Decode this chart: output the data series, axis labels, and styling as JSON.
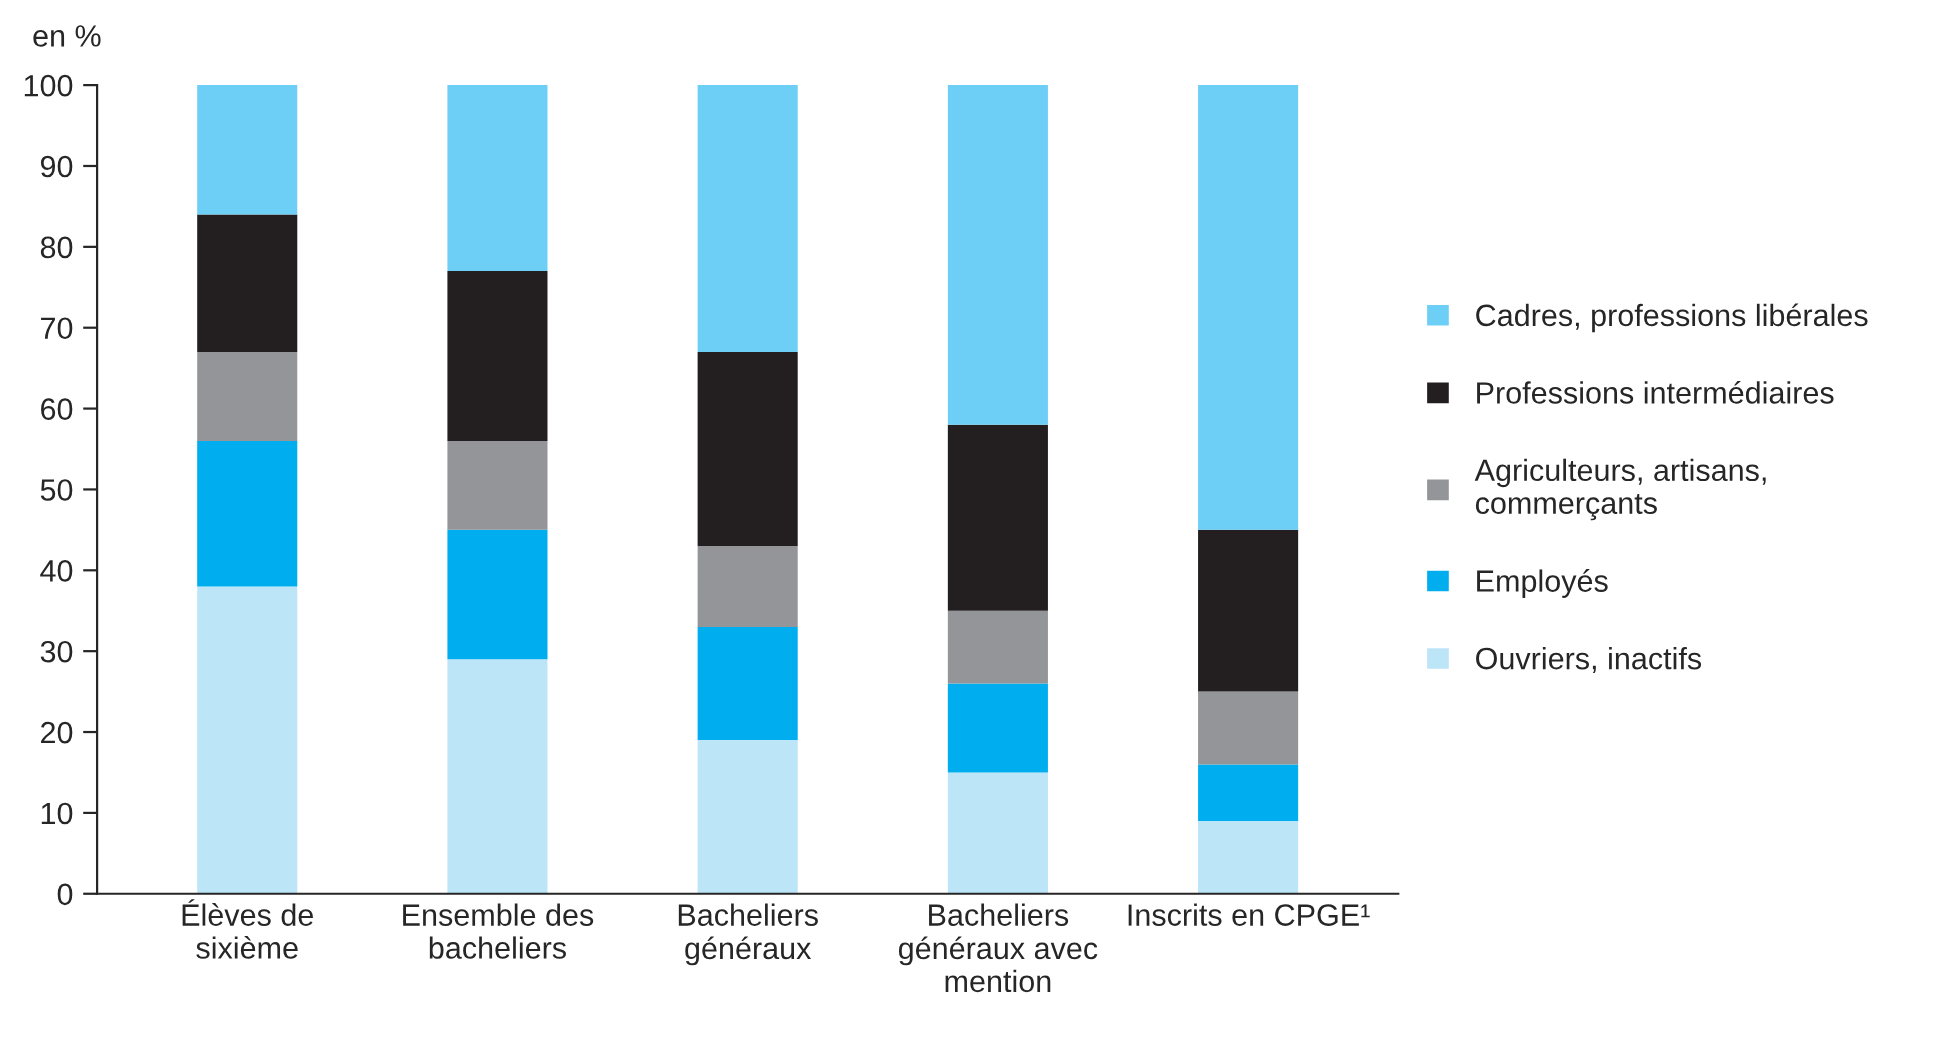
{
  "chart_data": {
    "type": "bar",
    "stacked": true,
    "ylabel": "en %",
    "categories": [
      "Élèves de\nsixième",
      "Ensemble des\nbacheliers",
      "Bacheliers\ngénéraux",
      "Bacheliers\ngénéraux avec\nmention",
      "Inscrits en CPGE¹"
    ],
    "series": [
      {
        "name": "Ouvriers, inactifs",
        "color": "#bde5f8",
        "values": [
          38,
          29,
          19,
          15,
          9
        ]
      },
      {
        "name": "Employés",
        "color": "#00aeef",
        "values": [
          18,
          16,
          14,
          11,
          7
        ]
      },
      {
        "name": "Agriculteurs, artisans,\ncommerçants",
        "color": "#939598",
        "values": [
          11,
          11,
          10,
          9,
          9
        ]
      },
      {
        "name": "Professions intermédiaires",
        "color": "#231f20",
        "values": [
          17,
          21,
          24,
          23,
          20
        ]
      },
      {
        "name": "Cadres, professions libérales",
        "color": "#6dcff6",
        "values": [
          16,
          23,
          33,
          42,
          55
        ]
      }
    ],
    "ylim": [
      0,
      100
    ],
    "yticks": [
      0,
      10,
      20,
      30,
      40,
      50,
      60,
      70,
      80,
      90,
      100
    ],
    "grid": false,
    "legend": "right"
  }
}
